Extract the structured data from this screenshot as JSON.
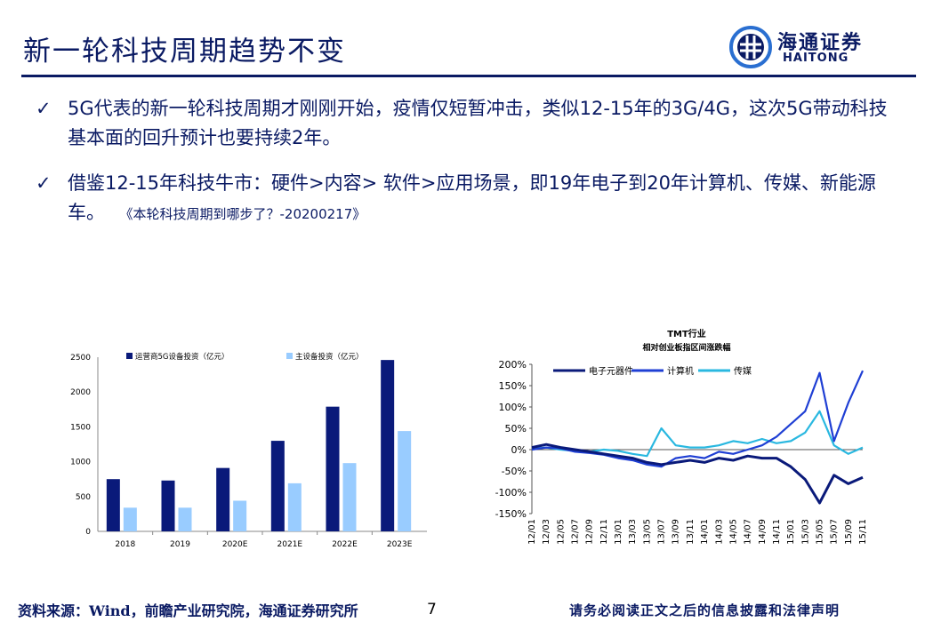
{
  "header": {
    "title": "新一轮科技周期趋势不变",
    "logo_cn": "海通证券",
    "logo_en": "HAITONG"
  },
  "bullets": [
    {
      "text": "5G代表的新一轮科技周期才刚刚开始，疫情仅短暂冲击，类似12-15年的3G/4G，这次5G带动科技基本面的回升预计也要持续2年。"
    },
    {
      "text": "借鉴12-15年科技牛市：硬件>内容> 软件>应用场景，即19年电子到20年计算机、传媒、新能源车。",
      "cite": "《本轮科技周期到哪步了？-20200217》"
    }
  ],
  "footer": {
    "source": "资料来源：Wind，前瞻产业研究院，海通证券研究所",
    "page": "7",
    "disclaimer": "请务必阅读正文之后的信息披露和法律声明"
  },
  "chart_data": [
    {
      "type": "bar",
      "categories": [
        "2018",
        "2019",
        "2020E",
        "2021E",
        "2022E",
        "2023E"
      ],
      "series": [
        {
          "name": "运营商5G设备投资（亿元）",
          "values": [
            750,
            730,
            910,
            1300,
            1790,
            2460
          ],
          "color": "#0a1a7a"
        },
        {
          "name": "主设备投资（亿元）",
          "values": [
            340,
            340,
            440,
            690,
            980,
            1440
          ],
          "color": "#99ccff"
        }
      ],
      "ylim": [
        0,
        2500
      ],
      "yticks": [
        0,
        500,
        1000,
        1500,
        2000,
        2500
      ],
      "legend": "top"
    },
    {
      "type": "line",
      "title": "TMT行业",
      "subtitle": "相对创业板指区间涨跌幅",
      "x_ticks": [
        "12/01",
        "12/03",
        "12/05",
        "12/07",
        "12/09",
        "12/11",
        "13/01",
        "13/03",
        "13/05",
        "13/07",
        "13/09",
        "13/11",
        "14/01",
        "14/03",
        "14/05",
        "14/07",
        "14/09",
        "14/11",
        "15/01",
        "15/03",
        "15/05",
        "15/07",
        "15/09",
        "15/11"
      ],
      "ylim": [
        -150,
        200
      ],
      "yticks": [
        "200%",
        "150%",
        "100%",
        "50%",
        "0%",
        "-50%",
        "-100%",
        "-150%"
      ],
      "series": [
        {
          "name": "电子元器件",
          "color": "#0a1a7a",
          "values": [
            5,
            12,
            5,
            0,
            -5,
            -10,
            -15,
            -20,
            -30,
            -35,
            -30,
            -25,
            -30,
            -20,
            -25,
            -15,
            -20,
            -20,
            -40,
            -70,
            -125,
            -60,
            -80,
            -65
          ]
        },
        {
          "name": "计算机",
          "color": "#1f3fd4",
          "values": [
            0,
            5,
            3,
            -5,
            -8,
            -12,
            -20,
            -25,
            -35,
            -40,
            -20,
            -15,
            -20,
            -5,
            -10,
            0,
            10,
            30,
            60,
            90,
            180,
            20,
            110,
            185
          ]
        },
        {
          "name": "传媒",
          "color": "#2ab8e0",
          "values": [
            2,
            5,
            0,
            -3,
            -5,
            0,
            -3,
            -10,
            -15,
            50,
            10,
            5,
            5,
            10,
            20,
            15,
            25,
            15,
            20,
            40,
            90,
            10,
            -10,
            5
          ]
        }
      ],
      "legend": "top"
    }
  ]
}
